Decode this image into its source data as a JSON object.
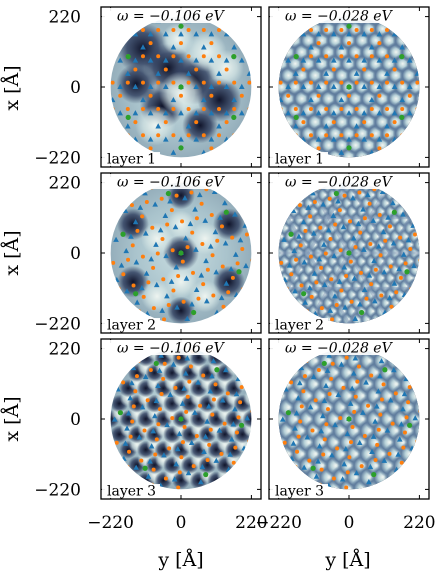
{
  "figure": {
    "rows": [
      {
        "layer_label": "layer 1"
      },
      {
        "layer_label": "layer 2"
      },
      {
        "layer_label": "layer 3"
      }
    ],
    "columns": [
      {
        "omega_label": "ω = −0.106 eV"
      },
      {
        "omega_label": "ω = −0.028 eV"
      }
    ],
    "x_axis_label": "y [Å]",
    "y_axis_label": "x [Å]",
    "x_ticks": [
      "−220",
      "0",
      "220"
    ],
    "y_ticks": [
      "220",
      "0",
      "−220"
    ]
  },
  "chart_data": {
    "type": "heatmap",
    "xlabel": "y [Å]",
    "ylabel": "x [Å]",
    "xlim": [
      -250,
      250
    ],
    "ylim": [
      -250,
      250
    ],
    "xticks": [
      -220,
      0,
      220
    ],
    "yticks": [
      -220,
      0,
      220
    ],
    "domain_radius": 220,
    "colormap": [
      "#0d0f1e",
      "#5e7a99",
      "#a9c8d3",
      "#eef4f3"
    ],
    "marker_colors": {
      "triangle": "#1f77b4",
      "dot": "#ff7f0e",
      "center_dot": "#2ca02c"
    },
    "panels": [
      {
        "row": 1,
        "col": 1,
        "label": "layer 1",
        "omega_eV": -0.106
      },
      {
        "row": 1,
        "col": 2,
        "label": "layer 1",
        "omega_eV": -0.028
      },
      {
        "row": 2,
        "col": 1,
        "label": "layer 2",
        "omega_eV": -0.106
      },
      {
        "row": 2,
        "col": 2,
        "label": "layer 2",
        "omega_eV": -0.028
      },
      {
        "row": 3,
        "col": 1,
        "label": "layer 3",
        "omega_eV": -0.106
      },
      {
        "row": 3,
        "col": 2,
        "label": "layer 3",
        "omega_eV": -0.028
      }
    ]
  }
}
